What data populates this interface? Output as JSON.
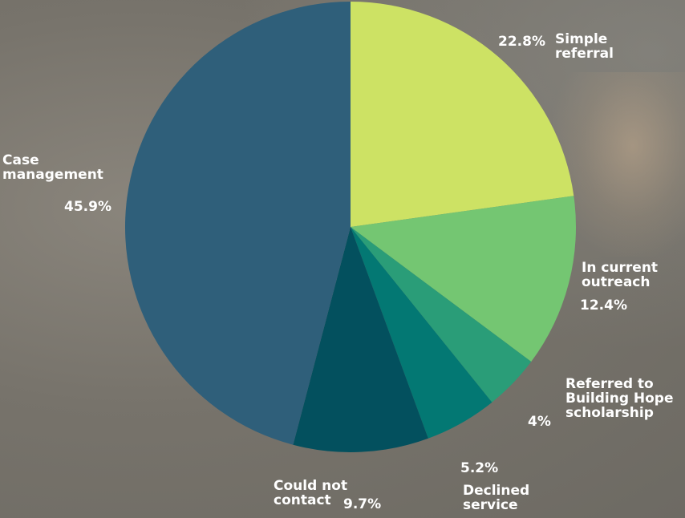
{
  "chart_data": {
    "type": "pie",
    "slices": [
      {
        "label": "Simple\nreferral",
        "value": 22.8,
        "value_label": "22.8%",
        "color": "#cde264"
      },
      {
        "label": "In current\noutreach",
        "value": 12.4,
        "value_label": "12.4%",
        "color": "#74c672"
      },
      {
        "label": "Referred to\nBuilding Hope\nscholarship",
        "value": 4.0,
        "value_label": "4%",
        "color": "#2a9d78"
      },
      {
        "label": "Declined\nservice",
        "value": 5.2,
        "value_label": "5.2%",
        "color": "#037873"
      },
      {
        "label": "Could not\ncontact",
        "value": 9.7,
        "value_label": "9.7%",
        "color": "#03505e"
      },
      {
        "label": "Case\nmanagement",
        "value": 45.9,
        "value_label": "45.9%",
        "color": "#2f5f7a"
      }
    ]
  }
}
